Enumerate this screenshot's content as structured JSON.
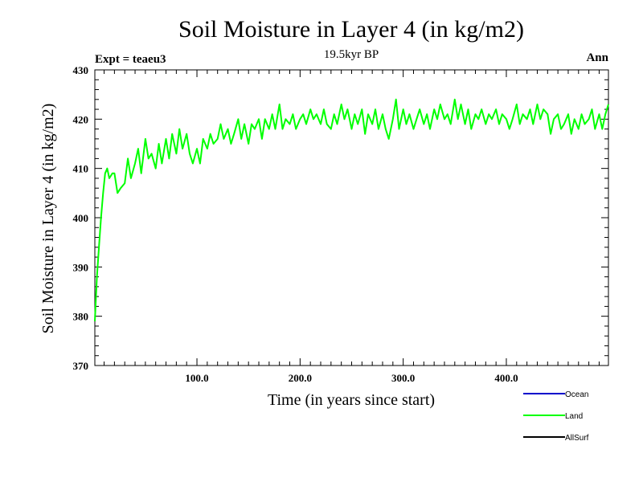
{
  "chart_data": {
    "type": "line",
    "title": "Soil Moisture in Layer 4 (in kg/m2)",
    "subtitle": "19.5kyr BP",
    "experiment_label": "Expt = teaeu3",
    "period_label": "Ann",
    "xlabel": "Time (in years since start)",
    "ylabel": "Soil Moisture in Layer 4 (in kg/m2)",
    "xlim": [
      1,
      499
    ],
    "ylim": [
      370,
      430
    ],
    "x_ticks": [
      100,
      200,
      300,
      400
    ],
    "x_tick_labels": [
      "100.0",
      "200.0",
      "300.0",
      "400.0"
    ],
    "y_ticks": [
      370,
      380,
      390,
      400,
      410,
      420,
      430
    ],
    "y_tick_labels": [
      "370",
      "380",
      "390",
      "400",
      "410",
      "420",
      "430"
    ],
    "legend": [
      {
        "name": "Ocean",
        "color": "#0000cc"
      },
      {
        "name": "Land",
        "color": "#00ff00"
      },
      {
        "name": "AllSurf",
        "color": "#000000"
      }
    ],
    "series": [
      {
        "name": "Land",
        "color": "#00ff00",
        "x": [
          1,
          3,
          5,
          7,
          9,
          11,
          13,
          15,
          18,
          20,
          23,
          26,
          30,
          33,
          36,
          40,
          43,
          46,
          50,
          53,
          56,
          60,
          63,
          66,
          70,
          73,
          76,
          80,
          83,
          86,
          90,
          93,
          96,
          100,
          103,
          106,
          110,
          113,
          116,
          120,
          123,
          126,
          130,
          133,
          136,
          140,
          143,
          146,
          150,
          153,
          156,
          160,
          163,
          166,
          170,
          173,
          176,
          180,
          183,
          186,
          190,
          193,
          196,
          200,
          203,
          206,
          210,
          213,
          216,
          220,
          223,
          226,
          230,
          233,
          236,
          240,
          243,
          246,
          250,
          253,
          256,
          260,
          263,
          266,
          270,
          273,
          276,
          280,
          283,
          286,
          290,
          293,
          296,
          300,
          303,
          306,
          310,
          313,
          316,
          320,
          323,
          326,
          330,
          333,
          336,
          340,
          343,
          346,
          350,
          353,
          356,
          360,
          363,
          366,
          370,
          373,
          376,
          380,
          383,
          386,
          390,
          393,
          396,
          400,
          403,
          406,
          410,
          413,
          416,
          420,
          423,
          426,
          430,
          433,
          436,
          440,
          443,
          446,
          450,
          453,
          456,
          460,
          463,
          466,
          470,
          473,
          476,
          480,
          483,
          486,
          490,
          493,
          496,
          499
        ],
        "values": [
          379,
          388,
          394,
          400,
          405,
          409,
          410,
          408,
          409,
          409,
          405,
          406,
          407,
          412,
          408,
          411,
          414,
          409,
          416,
          412,
          413,
          410,
          415,
          411,
          416,
          412,
          417,
          413,
          418,
          414,
          417,
          413,
          411,
          414,
          411,
          416,
          414,
          417,
          415,
          416,
          419,
          416,
          418,
          415,
          417,
          420,
          416,
          419,
          415,
          419,
          418,
          420,
          416,
          420,
          418,
          421,
          418,
          423,
          418,
          420,
          419,
          421,
          418,
          420,
          421,
          419,
          422,
          420,
          421,
          419,
          422,
          419,
          418,
          421,
          419,
          423,
          420,
          422,
          418,
          421,
          419,
          422,
          417,
          421,
          419,
          422,
          418,
          421,
          418,
          416,
          420,
          424,
          418,
          422,
          419,
          421,
          418,
          420,
          422,
          419,
          421,
          418,
          422,
          420,
          423,
          420,
          421,
          419,
          424,
          420,
          423,
          419,
          422,
          418,
          421,
          420,
          422,
          419,
          421,
          420,
          422,
          419,
          421,
          420,
          418,
          420,
          423,
          419,
          421,
          420,
          422,
          419,
          423,
          420,
          422,
          421,
          417,
          420,
          421,
          418,
          419,
          421,
          417,
          420,
          418,
          421,
          419,
          420,
          422,
          418,
          421,
          418,
          421,
          423
        ]
      }
    ]
  }
}
